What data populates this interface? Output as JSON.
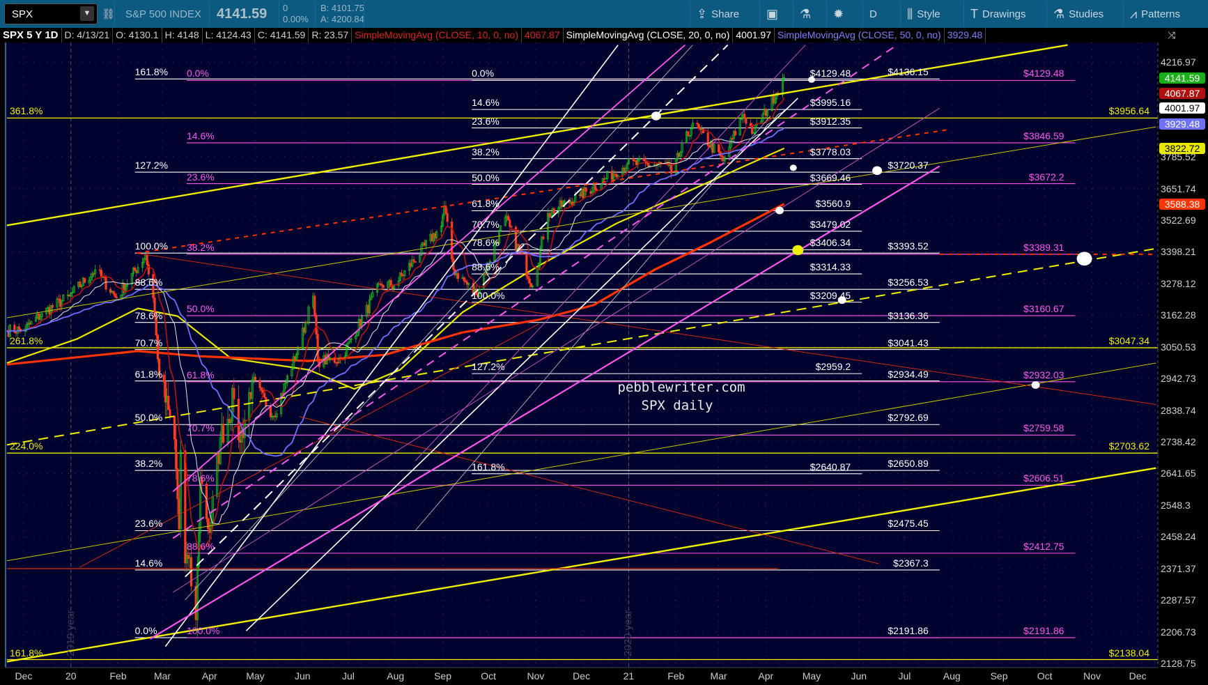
{
  "toolbar": {
    "symbol": "SPX",
    "instrument_name": "S&P 500 INDEX",
    "last_price": "4141.59",
    "change": "0",
    "change_pct": "0.00%",
    "bid": "B: 4101.75",
    "ask": "A: 4200.84",
    "buttons": [
      {
        "label": "Share",
        "icon": "share-icon"
      },
      {
        "label": "",
        "icon": "quote-screen-icon"
      },
      {
        "label": "",
        "icon": "flask-icon"
      },
      {
        "label": "",
        "icon": "gear-icon"
      },
      {
        "label": "D",
        "icon": ""
      },
      {
        "label": "Style",
        "icon": "candlestick-icon"
      },
      {
        "label": "Drawings",
        "icon": "text-tool-icon"
      },
      {
        "label": "Studies",
        "icon": "flask-icon"
      },
      {
        "label": "Patterns",
        "icon": "patterns-icon"
      }
    ]
  },
  "infobar": {
    "title": "SPX 5 Y 1D",
    "date": "D: 4/13/21",
    "open": "O: 4130.1",
    "high": "H: 4148",
    "low": "L: 4124.43",
    "close": "C: 4141.59",
    "range": "R: 23.57",
    "studies": [
      {
        "label": "SimpleMovingAvg (CLOSE, 10, 0, no)",
        "value": "4067.87",
        "color": "#e0201a"
      },
      {
        "label": "SimpleMovingAvg (CLOSE, 20, 0, no)",
        "value": "4001.97",
        "color": "#ffffff"
      },
      {
        "label": "SimpleMovingAvg (CLOSE, 50, 0, no)",
        "value": "3929.48",
        "color": "#7b7bff"
      }
    ]
  },
  "chart_data": {
    "type": "candlestick",
    "symbol": "SPX",
    "scale": "log",
    "ylim": [
      2128.75,
      4216.97
    ],
    "xlim": [
      "2019-11-20",
      "2021-12-31"
    ],
    "grid": true,
    "y_ticks": [
      "4216.97",
      "3785.52",
      "3651.74",
      "3522.69",
      "3398.21",
      "3278.12",
      "3162.28",
      "3050.53",
      "2942.73",
      "2838.74",
      "2738.42",
      "2641.65",
      "2548.3",
      "2458.24",
      "2371.37",
      "2287.57",
      "2206.73",
      "2128.75"
    ],
    "x_ticks": [
      {
        "date": "2019-12-01",
        "label": "Dec"
      },
      {
        "date": "2020-01-01",
        "label": "20"
      },
      {
        "date": "2020-02-01",
        "label": "Feb"
      },
      {
        "date": "2020-03-01",
        "label": "Mar"
      },
      {
        "date": "2020-04-01",
        "label": "Apr"
      },
      {
        "date": "2020-05-01",
        "label": "May"
      },
      {
        "date": "2020-06-01",
        "label": "Jun"
      },
      {
        "date": "2020-07-01",
        "label": "Jul"
      },
      {
        "date": "2020-08-01",
        "label": "Aug"
      },
      {
        "date": "2020-09-01",
        "label": "Sep"
      },
      {
        "date": "2020-10-01",
        "label": "Oct"
      },
      {
        "date": "2020-11-01",
        "label": "Nov"
      },
      {
        "date": "2020-12-01",
        "label": "Dec"
      },
      {
        "date": "2021-01-01",
        "label": "21"
      },
      {
        "date": "2021-02-01",
        "label": "Feb"
      },
      {
        "date": "2021-03-01",
        "label": "Mar"
      },
      {
        "date": "2021-04-01",
        "label": "Apr"
      },
      {
        "date": "2021-05-01",
        "label": "May"
      },
      {
        "date": "2021-06-01",
        "label": "Jun"
      },
      {
        "date": "2021-07-01",
        "label": "Jul"
      },
      {
        "date": "2021-08-01",
        "label": "Aug"
      },
      {
        "date": "2021-09-01",
        "label": "Sep"
      },
      {
        "date": "2021-10-01",
        "label": "Oct"
      },
      {
        "date": "2021-11-01",
        "label": "Nov"
      },
      {
        "date": "2021-12-01",
        "label": "Dec"
      }
    ],
    "year_labels": [
      {
        "date": "2020-01-01",
        "label": "2019 year"
      },
      {
        "date": "2021-01-01",
        "label": "2020 year"
      }
    ],
    "price_closes": [
      [
        "2019-11-20",
        3108
      ],
      [
        "2019-12-02",
        3113
      ],
      [
        "2019-12-13",
        3168
      ],
      [
        "2019-12-31",
        3231
      ],
      [
        "2020-01-17",
        3330
      ],
      [
        "2020-01-31",
        3225
      ],
      [
        "2020-02-19",
        3386
      ],
      [
        "2020-02-24",
        3225
      ],
      [
        "2020-02-28",
        2954
      ],
      [
        "2020-03-09",
        2746
      ],
      [
        "2020-03-12",
        2480
      ],
      [
        "2020-03-13",
        2711
      ],
      [
        "2020-03-16",
        2386
      ],
      [
        "2020-03-18",
        2398
      ],
      [
        "2020-03-23",
        2237
      ],
      [
        "2020-03-26",
        2630
      ],
      [
        "2020-04-01",
        2470
      ],
      [
        "2020-04-08",
        2750
      ],
      [
        "2020-04-17",
        2875
      ],
      [
        "2020-04-21",
        2737
      ],
      [
        "2020-04-29",
        2939
      ],
      [
        "2020-05-13",
        2820
      ],
      [
        "2020-05-29",
        3044
      ],
      [
        "2020-06-08",
        3232
      ],
      [
        "2020-06-11",
        3002
      ],
      [
        "2020-06-26",
        3009
      ],
      [
        "2020-07-22",
        3276
      ],
      [
        "2020-07-31",
        3271
      ],
      [
        "2020-08-31",
        3500
      ],
      [
        "2020-09-02",
        3580
      ],
      [
        "2020-09-08",
        3331
      ],
      [
        "2020-09-23",
        3237
      ],
      [
        "2020-10-12",
        3534
      ],
      [
        "2020-10-30",
        3270
      ],
      [
        "2020-11-09",
        3550
      ],
      [
        "2020-11-30",
        3622
      ],
      [
        "2020-12-31",
        3756
      ],
      [
        "2021-01-27",
        3750
      ],
      [
        "2021-01-29",
        3714
      ],
      [
        "2021-02-12",
        3934
      ],
      [
        "2021-03-04",
        3768
      ],
      [
        "2021-03-17",
        3974
      ],
      [
        "2021-03-24",
        3890
      ],
      [
        "2021-04-13",
        4141.59
      ]
    ],
    "computed_sma": [
      {
        "length": 10,
        "color": "#c0100c",
        "width": 1.6
      },
      {
        "length": 20,
        "color": "#e6e6e6",
        "width": 1
      },
      {
        "length": 50,
        "color": "#7070ff",
        "width": 1.8
      }
    ],
    "extra_averages": [
      {
        "color": "#e8e800",
        "width": 2.2,
        "points": [
          [
            "2019-11-20",
            2995
          ],
          [
            "2020-01-05",
            3078
          ],
          [
            "2020-02-14",
            3187
          ],
          [
            "2020-03-11",
            3159
          ],
          [
            "2020-04-15",
            3011
          ],
          [
            "2020-06-05",
            2972
          ],
          [
            "2020-07-05",
            2908
          ],
          [
            "2020-08-04",
            2972
          ],
          [
            "2020-09-14",
            3173
          ],
          [
            "2020-11-03",
            3345
          ],
          [
            "2020-12-24",
            3510
          ],
          [
            "2021-02-12",
            3649
          ],
          [
            "2021-04-13",
            3822.72
          ]
        ]
      },
      {
        "color": "#ff3300",
        "width": 3.2,
        "points": [
          [
            "2019-11-20",
            2990
          ],
          [
            "2020-02-14",
            3036
          ],
          [
            "2020-03-26",
            3018
          ],
          [
            "2020-06-05",
            3002
          ],
          [
            "2020-07-25",
            3023
          ],
          [
            "2020-09-14",
            3101
          ],
          [
            "2020-11-03",
            3146
          ],
          [
            "2020-12-09",
            3199
          ],
          [
            "2021-01-18",
            3330
          ],
          [
            "2021-02-23",
            3433
          ],
          [
            "2021-04-13",
            3588.38
          ]
        ]
      }
    ],
    "price_badges": [
      {
        "value": "4141.59",
        "bg": "#19b019",
        "fg": "#ffffff"
      },
      {
        "value": "4067.87",
        "bg": "#b01010",
        "fg": "#ffffff"
      },
      {
        "value": "4001.97",
        "bg": "#ffffff",
        "fg": "#000000"
      },
      {
        "value": "3929.48",
        "bg": "#7070ff",
        "fg": "#ffffff"
      },
      {
        "value": "3822.72",
        "bg": "#e8e800",
        "fg": "#000000"
      },
      {
        "value": "3588.38",
        "bg": "#ff3300",
        "fg": "#ffffff"
      }
    ],
    "fib_sets": [
      {
        "color": "#ffffff",
        "start": "2020-02-12",
        "end": "2021-07-24",
        "levels": [
          [
            "161.8%",
            4136.15,
            "$4136.15"
          ],
          [
            "127.2%",
            3720.37,
            "$3720.37"
          ],
          [
            "100.0%",
            3393.52,
            "$3393.52"
          ],
          [
            "88.6%",
            3256.53,
            "$3256.53"
          ],
          [
            "78.6%",
            3136.36,
            "$3136.36"
          ],
          [
            "70.7%",
            3041.43,
            "$3041.43"
          ],
          [
            "61.8%",
            2934.49,
            "$2934.49"
          ],
          [
            "50.0%",
            2792.69,
            "$2792.69"
          ],
          [
            "38.2%",
            2650.89,
            "$2650.89"
          ],
          [
            "23.6%",
            2475.45,
            "$2475.45"
          ],
          [
            "14.6%",
            2367.3,
            "$2367.3"
          ],
          [
            "0.0%",
            2191.86,
            "$2191.86"
          ]
        ]
      },
      {
        "color": "#ff55ee",
        "start": "2020-03-17",
        "end": "2021-10-21",
        "levels": [
          [
            "0.0%",
            4129.48,
            "$4129.48"
          ],
          [
            "14.6%",
            3846.59,
            "$3846.59"
          ],
          [
            "23.6%",
            3672.2,
            "$3672.2"
          ],
          [
            "38.2%",
            3389.31,
            "$3389.31"
          ],
          [
            "50.0%",
            3160.67,
            "$3160.67"
          ],
          [
            "61.8%",
            2932.03,
            "$2932.03"
          ],
          [
            "70.7%",
            2759.58,
            "$2759.58"
          ],
          [
            "78.6%",
            2606.51,
            "$2606.51"
          ],
          [
            "88.6%",
            2412.75,
            "$2412.75"
          ],
          [
            "100.0%",
            2191.86,
            "$2191.86"
          ]
        ]
      },
      {
        "color": "#ffffff",
        "start": "2020-09-20",
        "end": "2021-06-03",
        "levels": [
          [
            "0.0%",
            4129.48,
            "$4129.48"
          ],
          [
            "14.6%",
            3995.16,
            "$3995.16"
          ],
          [
            "23.6%",
            3912.35,
            "$3912.35"
          ],
          [
            "38.2%",
            3778.03,
            "$3778.03"
          ],
          [
            "50.0%",
            3669.46,
            "$3669.46"
          ],
          [
            "61.8%",
            3560.9,
            "$3560.9"
          ],
          [
            "70.7%",
            3479.02,
            "$3479.02"
          ],
          [
            "78.6%",
            3406.34,
            "$3406.34"
          ],
          [
            "88.6%",
            3314.33,
            "$3314.33"
          ],
          [
            "100.0%",
            3209.45,
            "$3209.45"
          ],
          [
            "127.2%",
            2959.2,
            "$2959.2"
          ],
          [
            "161.8%",
            2640.87,
            "$2640.87"
          ]
        ]
      },
      {
        "color": "#f0f000",
        "start": "2019-11-20",
        "end": "2021-12-31",
        "levels": [
          [
            "361.8%",
            3956.64,
            "$3956.64"
          ],
          [
            "261.8%",
            3047.34,
            "$3047.34"
          ],
          [
            "224.0%",
            2703.62,
            "$2703.62"
          ],
          [
            "161.8%",
            2138.04,
            "$2138.04"
          ]
        ]
      }
    ],
    "trendlines": [
      {
        "c": "#f0f000",
        "w": 2.4,
        "d": "",
        "p": [
          [
            "2019-11-20",
            3502
          ],
          [
            "2021-10-16",
            4299
          ]
        ]
      },
      {
        "c": "#f0f000",
        "w": 2.4,
        "d": "",
        "p": [
          [
            "2019-11-20",
            2133
          ],
          [
            "2021-12-13",
            2658
          ]
        ]
      },
      {
        "c": "#c8c800",
        "w": 1,
        "d": "",
        "p": [
          [
            "2019-11-20",
            3153
          ],
          [
            "2021-12-13",
            3917
          ]
        ]
      },
      {
        "c": "#c8c800",
        "w": 1,
        "d": "",
        "p": [
          [
            "2019-11-20",
            2392
          ],
          [
            "2021-12-13",
            2995
          ]
        ]
      },
      {
        "c": "#f0f000",
        "w": 2,
        "d": "14 9",
        "p": [
          [
            "2019-11-20",
            2729
          ],
          [
            "2021-12-13",
            3411
          ]
        ]
      },
      {
        "c": "#d02a10",
        "w": 1,
        "d": "",
        "p": [
          [
            "2020-02-13",
            3393
          ],
          [
            "2021-12-13",
            2857
          ]
        ]
      },
      {
        "c": "#d02a10",
        "w": 1,
        "d": "",
        "p": [
          [
            "2020-01-07",
            2375
          ],
          [
            "2020-11-03",
            3131
          ]
        ]
      },
      {
        "c": "#d02a10",
        "w": 1,
        "d": "",
        "p": [
          [
            "2020-05-30",
            2818
          ],
          [
            "2021-06-14",
            2384
          ]
        ]
      },
      {
        "c": "#d02a10",
        "w": 1.4,
        "d": "",
        "p": [
          [
            "2019-11-20",
            2371
          ],
          [
            "2021-04-09",
            2371
          ]
        ]
      },
      {
        "c": "#ff3300",
        "w": 2,
        "d": "6 7",
        "p": [
          [
            "2020-02-13",
            3393
          ],
          [
            "2021-07-29",
            3904
          ]
        ]
      },
      {
        "c": "#ff3300",
        "w": 2,
        "d": "6 7",
        "p": [
          [
            "2021-07-24",
            3389
          ],
          [
            "2021-12-13",
            3389
          ]
        ]
      },
      {
        "c": "#ffffff",
        "w": 1.6,
        "d": "",
        "p": [
          [
            "2020-03-03",
            2170
          ],
          [
            "2020-12-25",
            4299
          ]
        ]
      },
      {
        "c": "#cccccc",
        "w": 0.8,
        "d": "",
        "p": [
          [
            "2020-03-16",
            2288
          ],
          [
            "2021-02-12",
            4299
          ]
        ]
      },
      {
        "c": "#ffffff",
        "w": 1.6,
        "d": "",
        "p": [
          [
            "2020-04-25",
            2209
          ],
          [
            "2021-04-22",
            4047
          ]
        ]
      },
      {
        "c": "#cccccc",
        "w": 0.8,
        "d": "",
        "p": [
          [
            "2020-08-14",
            2476
          ],
          [
            "2021-04-04",
            3966
          ]
        ]
      },
      {
        "c": "#ffffff",
        "w": 2,
        "d": "14 9",
        "p": [
          [
            "2020-03-16",
            2349
          ],
          [
            "2021-03-07",
            4299
          ]
        ]
      },
      {
        "c": "#ff55ee",
        "w": 2.2,
        "d": "",
        "p": [
          [
            "2020-02-22",
            2189
          ],
          [
            "2021-07-24",
            3746
          ]
        ]
      },
      {
        "c": "#ff55ee",
        "w": 1.8,
        "d": "",
        "p": [
          [
            "2020-03-08",
            2588
          ],
          [
            "2021-02-07",
            4299
          ]
        ]
      },
      {
        "c": "#c050c0",
        "w": 1,
        "d": "",
        "p": [
          [
            "2020-03-08",
            2308
          ],
          [
            "2021-07-24",
            4001
          ]
        ]
      },
      {
        "c": "#c050c0",
        "w": 1,
        "d": "",
        "p": [
          [
            "2020-08-14",
            2680
          ],
          [
            "2021-04-27",
            4299
          ]
        ]
      },
      {
        "c": "#ff55ee",
        "w": 2,
        "d": "12 9",
        "p": [
          [
            "2020-03-08",
            2454
          ],
          [
            "2021-06-26",
            4299
          ]
        ]
      }
    ],
    "markers": [
      {
        "date": "2021-01-19",
        "price": 3966,
        "color": "#ffffff",
        "r": 7
      },
      {
        "date": "2021-05-01",
        "price": 4133,
        "color": "#ffffff",
        "r": 5
      },
      {
        "date": "2021-04-19",
        "price": 3739,
        "color": "#ffffff",
        "r": 5
      },
      {
        "date": "2021-06-13",
        "price": 3727,
        "color": "#ffffff",
        "r": 7
      },
      {
        "date": "2021-04-10",
        "price": 3562,
        "color": "#ffffff",
        "r": 6
      },
      {
        "date": "2021-05-21",
        "price": 3217,
        "color": "#ffffff",
        "r": 6
      },
      {
        "date": "2021-10-27",
        "price": 3372,
        "color": "#ffffff",
        "r": 11
      },
      {
        "date": "2021-09-25",
        "price": 2921,
        "color": "#ffffff",
        "r": 6
      },
      {
        "date": "2021-04-22",
        "price": 3405,
        "color": "#f0f000",
        "r": 8
      }
    ],
    "annotations": [
      "pebblewriter.com",
      "SPX daily"
    ]
  }
}
